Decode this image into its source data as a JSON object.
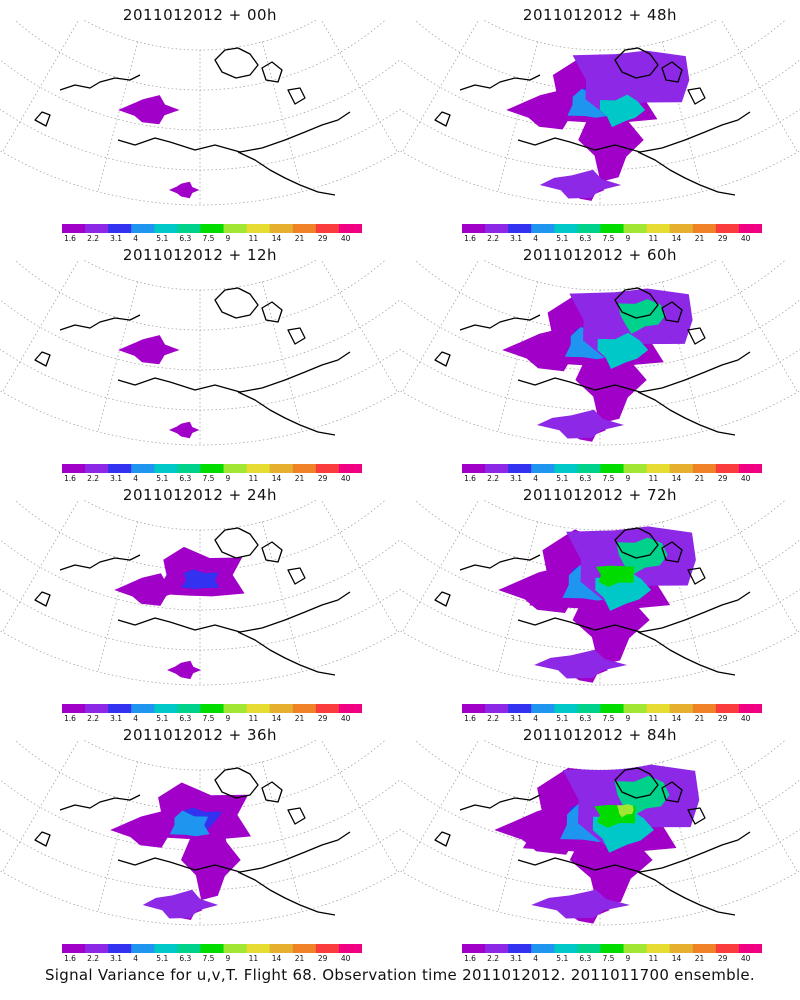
{
  "footer": "Signal Variance for u,v,T. Flight 68. Observation time 2011012012. 2011011700 ensemble.",
  "colorbar": {
    "labels": [
      "1.6",
      "2.2",
      "3.1",
      "4",
      "5.1",
      "6.3",
      "7.5",
      "9",
      "11",
      "14",
      "21",
      "29",
      "40"
    ],
    "colors": [
      "#a000c8",
      "#8c28e6",
      "#3232f0",
      "#1e96f0",
      "#00c8c8",
      "#00d28c",
      "#00dc00",
      "#a0e632",
      "#e6dc32",
      "#e6af2d",
      "#f08228",
      "#fa3c3c",
      "#f00082"
    ]
  },
  "panels": [
    {
      "title": "2011012012 + 00h",
      "intensity": 1
    },
    {
      "title": "2011012012 + 48h",
      "intensity": 4
    },
    {
      "title": "2011012012 + 12h",
      "intensity": 1
    },
    {
      "title": "2011012012 + 60h",
      "intensity": 5
    },
    {
      "title": "2011012012 + 24h",
      "intensity": 2
    },
    {
      "title": "2011012012 + 72h",
      "intensity": 6
    },
    {
      "title": "2011012012 + 36h",
      "intensity": 3
    },
    {
      "title": "2011012012 + 84h",
      "intensity": 7
    }
  ]
}
